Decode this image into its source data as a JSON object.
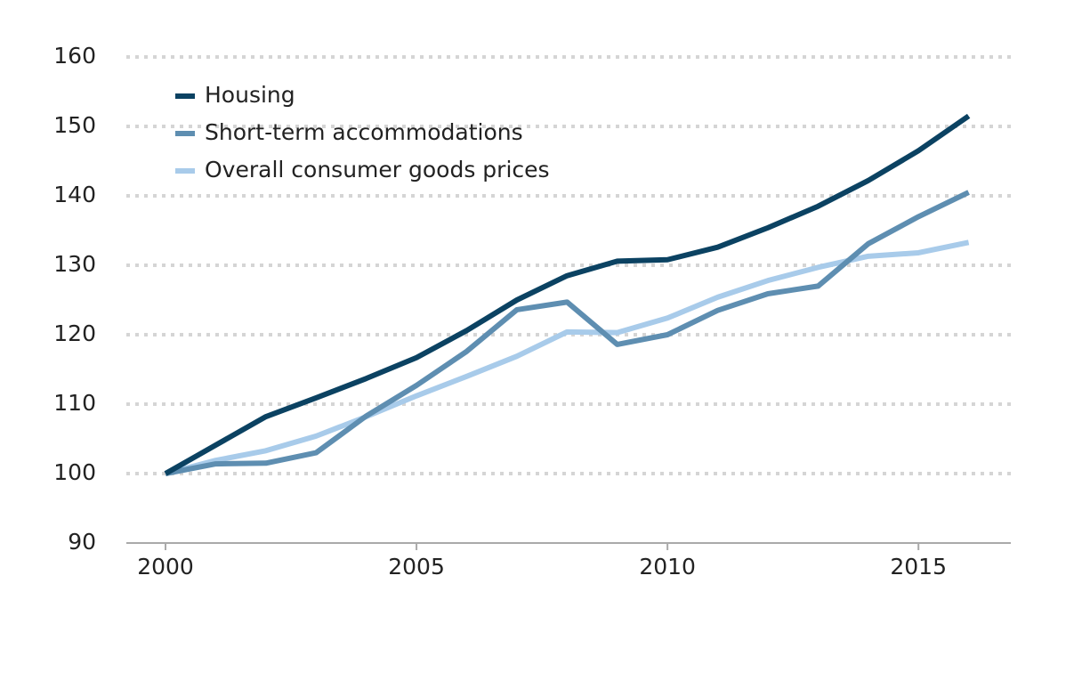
{
  "chart_data": {
    "type": "line",
    "x": [
      2000,
      2001,
      2002,
      2003,
      2004,
      2005,
      2006,
      2007,
      2008,
      2009,
      2010,
      2011,
      2012,
      2013,
      2014,
      2015,
      2016
    ],
    "series": [
      {
        "name": "Housing",
        "color": "#0b4262",
        "values": [
          100,
          104.1,
          108.2,
          110.9,
          113.7,
          116.7,
          120.6,
          125,
          128.5,
          130.6,
          130.8,
          132.6,
          135.4,
          138.5,
          142.2,
          146.5,
          151.5
        ]
      },
      {
        "name": "Short-term accommodations",
        "color": "#5e8eb1",
        "values": [
          100,
          101.4,
          101.5,
          103,
          108.3,
          112.7,
          117.6,
          123.6,
          124.7,
          118.6,
          120,
          123.5,
          125.9,
          127,
          133.1,
          137,
          140.5
        ]
      },
      {
        "name": "Overall consumer goods prices",
        "color": "#a8cbea",
        "values": [
          100,
          101.9,
          103.3,
          105.4,
          108.2,
          111.2,
          114,
          116.9,
          120.4,
          120.3,
          122.4,
          125.4,
          127.8,
          129.7,
          131.3,
          131.8,
          133.3
        ]
      }
    ],
    "xlim": [
      1999.22,
      2016.84
    ],
    "xticks": [
      2000,
      2005,
      2010,
      2015
    ],
    "ylim": [
      90,
      160
    ],
    "yticks": [
      90,
      100,
      110,
      120,
      130,
      140,
      150,
      160
    ],
    "grid": true,
    "legend": "top-left"
  }
}
